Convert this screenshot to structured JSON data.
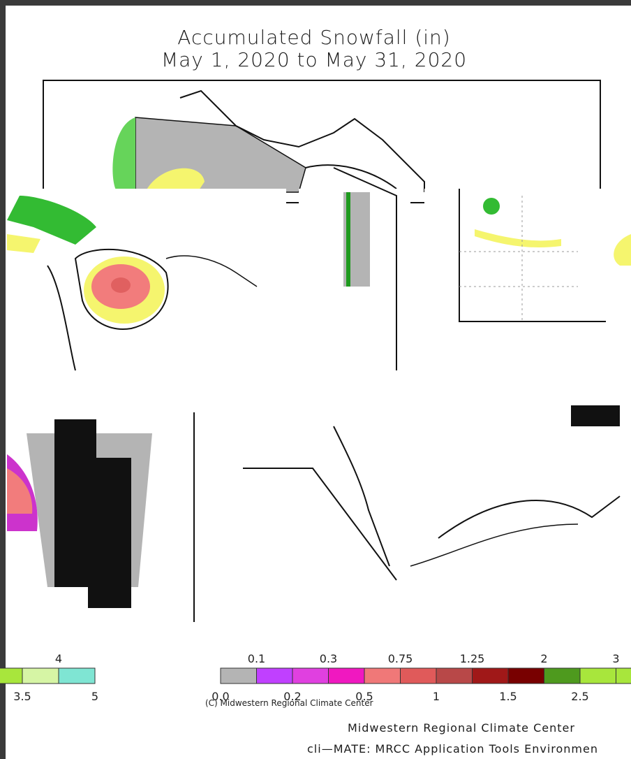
{
  "title": {
    "line1": "Accumulated Snowfall (in)",
    "line2": "May 1, 2020 to May 31, 2020"
  },
  "map": {
    "copyright": "(C) Midwestern Regional Climate Center",
    "colors": {
      "zero_gray": "#b4b4b4",
      "green_dark": "#1e9a1e",
      "green_mid": "#33bb33",
      "green_light": "#66d45a",
      "yellow": "#f5f56e",
      "orange": "#f5b24a",
      "pink_light": "#f27c7c",
      "pink_mid": "#e06060",
      "magenta": "#cc33cc",
      "violet": "#c040ff"
    }
  },
  "legend_left": {
    "upper_labels": [
      "4"
    ],
    "lower_labels": [
      "3.5",
      "5"
    ],
    "colors": [
      "#a8e63c",
      "#d6f5a5",
      "#7fe5d3"
    ]
  },
  "legend_right": {
    "upper_labels": [
      "0.1",
      "0.3",
      "0.75",
      "1.25",
      "2",
      "3"
    ],
    "lower_labels": [
      "0.0",
      "0.2",
      "0.5",
      "1",
      "1.5",
      "2.5"
    ],
    "colors": [
      "#b4b4b4",
      "#c040ff",
      "#e040e0",
      "#f018c0",
      "#f07878",
      "#e05a5a",
      "#b84848",
      "#a01818",
      "#780000",
      "#4e9a1e",
      "#a8e63c",
      "#a8e63c"
    ]
  },
  "credits": {
    "line1": "Midwestern Regional Climate Center",
    "line2": "cli—MATE: MRCC Application Tools Environmen"
  }
}
